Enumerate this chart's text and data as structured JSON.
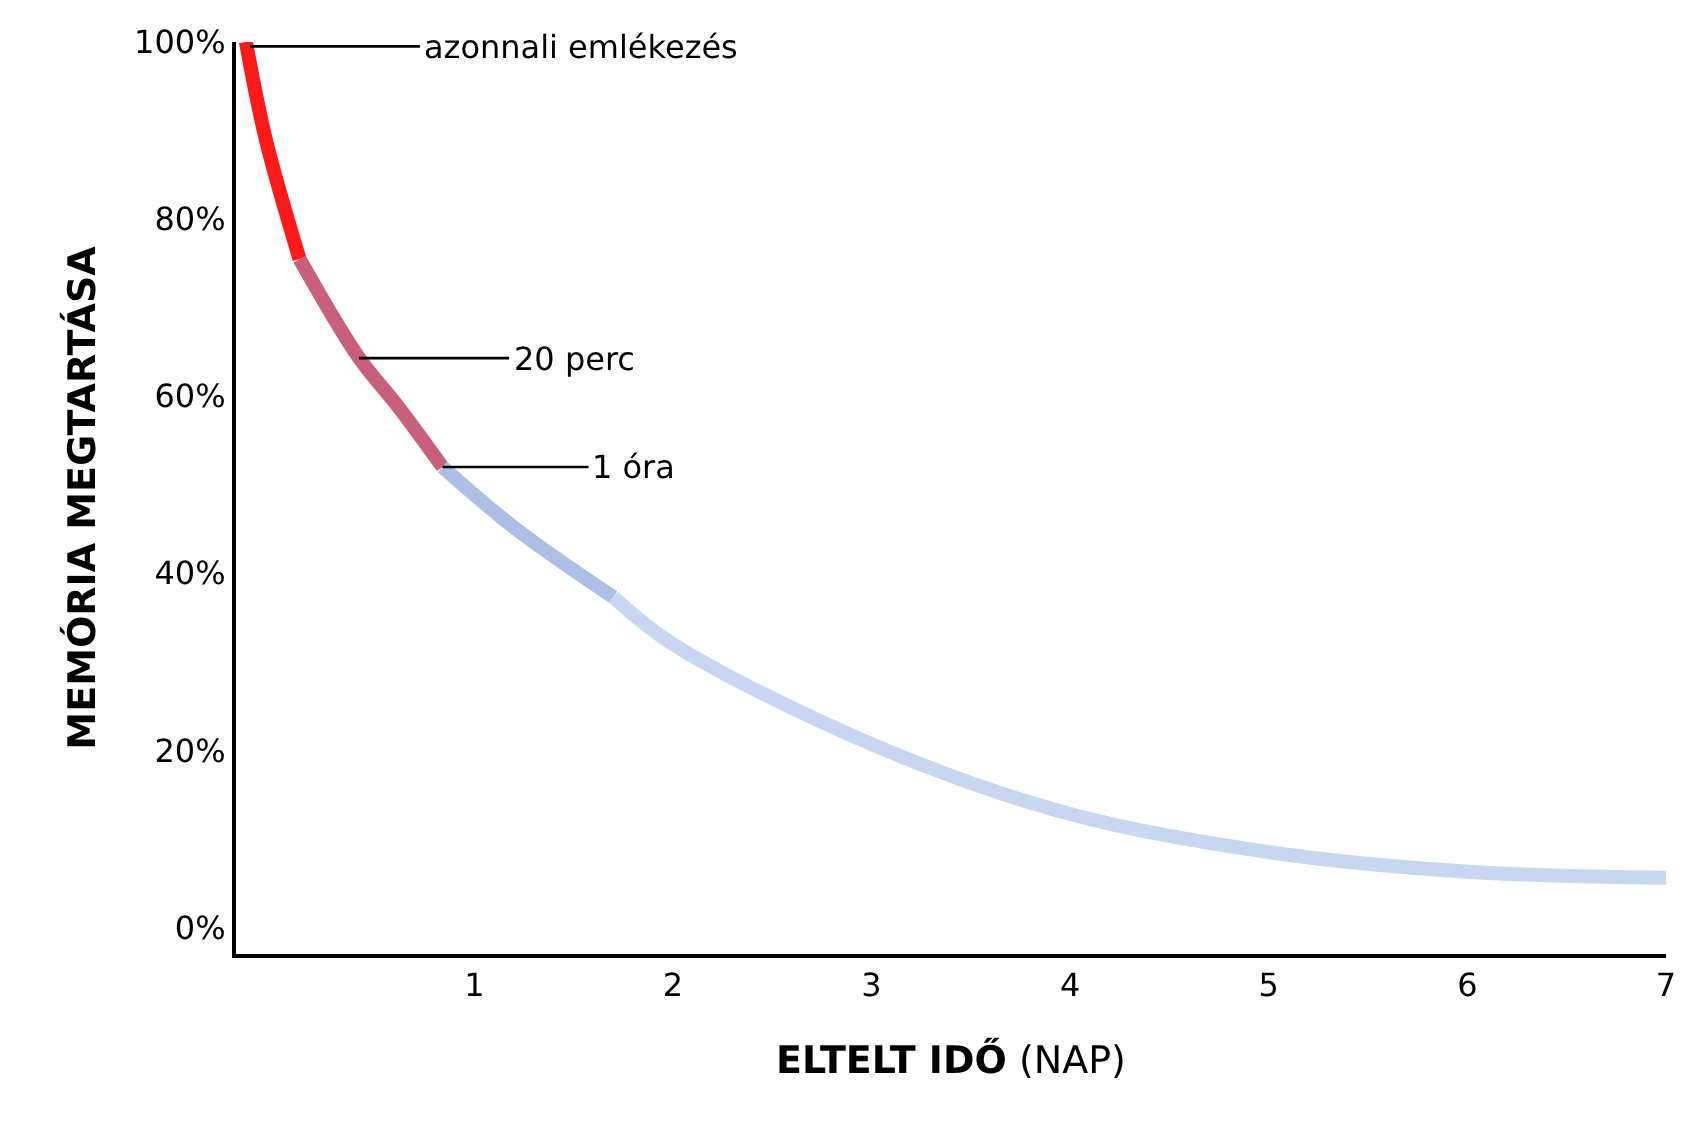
{
  "chart_data": {
    "type": "line",
    "xlabel": "ELTELT IDŐ (NAP)",
    "ylabel": "MEMÓRIA MEGTARTÁSA",
    "series": [
      {
        "color": "#ff1a1a",
        "x": [
          -0.15,
          -0.05,
          0.12
        ],
        "values": [
          100,
          89,
          75.5
        ]
      },
      {
        "color": "#c9607a",
        "x": [
          0.12,
          0.42,
          0.61,
          0.84
        ],
        "values": [
          75.5,
          64.3,
          59,
          52
        ]
      },
      {
        "color": "#aebfe5",
        "x": [
          0.84,
          1.21,
          1.7
        ],
        "values": [
          52,
          45,
          37.3
        ]
      },
      {
        "color": "#c9d6ef",
        "x": [
          1.7,
          2,
          3,
          4,
          5,
          6,
          7
        ],
        "values": [
          37.3,
          32,
          20.7,
          12.8,
          8.5,
          6.3,
          5.6
        ]
      }
    ],
    "annotations": [
      {
        "text": "azonnali emlékezés",
        "x": -0.13,
        "y": 99.5
      },
      {
        "text": "20 perc",
        "x": 0.42,
        "y": 64.3
      },
      {
        "text": "1 óra",
        "x": 0.84,
        "y": 52
      }
    ],
    "xlim": [
      -0.2,
      7
    ],
    "xticks": [
      1,
      2,
      3,
      4,
      5,
      6,
      7
    ],
    "ylim": [
      -3,
      100
    ],
    "yticks": [
      {
        "value": 0,
        "label": "0%"
      },
      {
        "value": 20,
        "label": "20%"
      },
      {
        "value": 40,
        "label": "40%"
      },
      {
        "value": 60,
        "label": "60%"
      },
      {
        "value": 80,
        "label": "80%"
      },
      {
        "value": 100,
        "label": "100%"
      }
    ],
    "marker": "none",
    "line_style": "solid"
  }
}
